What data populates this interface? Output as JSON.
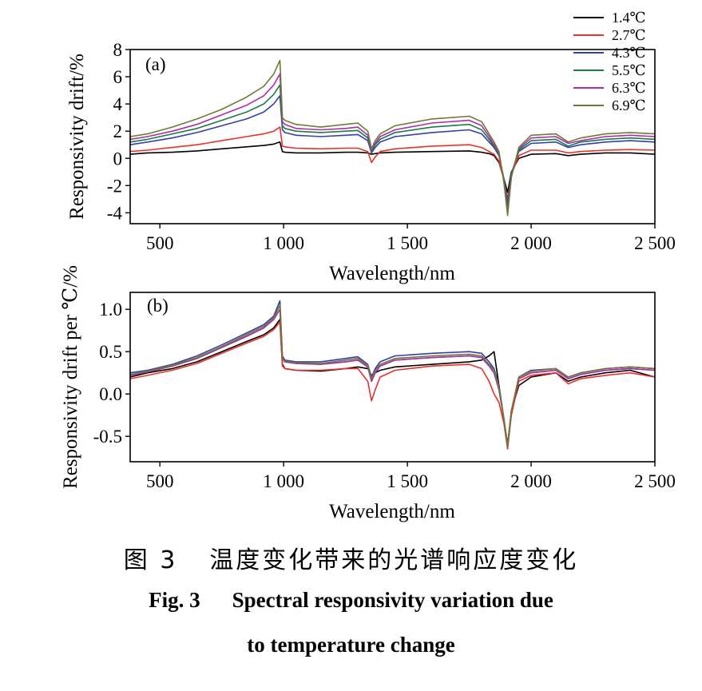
{
  "chart_data": [
    {
      "type": "line",
      "panel_label": "(a)",
      "xlabel": "Wavelength/nm",
      "ylabel": "Responsivity drift/%",
      "xlim": [
        380,
        2500
      ],
      "ylim": [
        -4.8,
        8
      ],
      "xticks": [
        500,
        1000,
        1500,
        2000,
        2500
      ],
      "xtick_labels": [
        "500",
        "1 000",
        "1 500",
        "2 000",
        "2 500"
      ],
      "yticks": [
        -4,
        -2,
        0,
        2,
        4,
        6,
        8
      ],
      "ytick_labels": [
        "-4",
        "-2",
        "0",
        "2",
        "4",
        "6",
        "8"
      ],
      "x": [
        380,
        450,
        550,
        650,
        750,
        850,
        920,
        960,
        985,
        995,
        1005,
        1050,
        1150,
        1250,
        1300,
        1340,
        1355,
        1370,
        1390,
        1450,
        1600,
        1750,
        1800,
        1830,
        1850,
        1870,
        1890,
        1905,
        1920,
        1950,
        2000,
        2100,
        2150,
        2200,
        2300,
        2400,
        2500
      ],
      "series": [
        {
          "name": "1.4℃",
          "color": "#000000",
          "values": [
            0.3,
            0.4,
            0.45,
            0.55,
            0.7,
            0.85,
            0.95,
            1.05,
            1.2,
            0.5,
            0.45,
            0.4,
            0.4,
            0.45,
            0.45,
            0.4,
            0.3,
            0.35,
            0.4,
            0.45,
            0.5,
            0.55,
            0.45,
            0.35,
            0.2,
            -0.3,
            -1.5,
            -2.5,
            -1.0,
            0.0,
            0.3,
            0.35,
            0.2,
            0.3,
            0.4,
            0.4,
            0.3
          ]
        },
        {
          "name": "2.7℃",
          "color": "#e8302b",
          "values": [
            0.5,
            0.6,
            0.8,
            1.0,
            1.3,
            1.6,
            1.8,
            2.0,
            2.3,
            0.9,
            0.85,
            0.75,
            0.7,
            0.75,
            0.75,
            0.5,
            -0.3,
            0.1,
            0.5,
            0.7,
            0.9,
            1.0,
            0.8,
            0.5,
            0.3,
            -0.2,
            -1.6,
            -3.0,
            -1.2,
            0.2,
            0.6,
            0.6,
            0.4,
            0.5,
            0.6,
            0.65,
            0.6
          ]
        },
        {
          "name": "4.3℃",
          "color": "#3040a8",
          "values": [
            1.0,
            1.2,
            1.5,
            1.9,
            2.4,
            2.9,
            3.4,
            4.0,
            4.6,
            2.1,
            1.9,
            1.7,
            1.6,
            1.7,
            1.75,
            1.3,
            0.4,
            0.8,
            1.2,
            1.6,
            1.9,
            2.1,
            1.8,
            1.2,
            0.8,
            0.2,
            -1.5,
            -3.3,
            -1.1,
            0.5,
            1.1,
            1.2,
            0.8,
            1.0,
            1.2,
            1.3,
            1.2
          ]
        },
        {
          "name": "5.5℃",
          "color": "#1a7a48",
          "values": [
            1.2,
            1.4,
            1.8,
            2.2,
            2.8,
            3.4,
            4.0,
            4.7,
            5.4,
            2.4,
            2.2,
            2.0,
            1.9,
            2.0,
            2.05,
            1.5,
            0.5,
            1.0,
            1.4,
            1.9,
            2.3,
            2.5,
            2.1,
            1.4,
            0.9,
            0.3,
            -1.6,
            -3.6,
            -1.2,
            0.6,
            1.3,
            1.4,
            0.9,
            1.2,
            1.4,
            1.5,
            1.4
          ]
        },
        {
          "name": "6.3℃",
          "color": "#b02ab0",
          "values": [
            1.4,
            1.6,
            2.0,
            2.5,
            3.2,
            3.9,
            4.6,
            5.4,
            6.2,
            2.7,
            2.5,
            2.2,
            2.1,
            2.2,
            2.3,
            1.7,
            0.6,
            1.1,
            1.6,
            2.1,
            2.6,
            2.8,
            2.4,
            1.6,
            1.0,
            0.4,
            -1.7,
            -3.9,
            -1.3,
            0.7,
            1.5,
            1.6,
            1.1,
            1.3,
            1.6,
            1.7,
            1.6
          ]
        },
        {
          "name": "6.9℃",
          "color": "#6e7a30",
          "values": [
            1.6,
            1.8,
            2.3,
            2.9,
            3.6,
            4.5,
            5.3,
            6.2,
            7.2,
            3.0,
            2.8,
            2.5,
            2.3,
            2.5,
            2.6,
            2.0,
            0.7,
            1.3,
            1.8,
            2.4,
            2.9,
            3.1,
            2.7,
            1.8,
            1.2,
            0.5,
            -1.8,
            -4.2,
            -1.4,
            0.8,
            1.7,
            1.8,
            1.2,
            1.5,
            1.8,
            1.9,
            1.8
          ]
        }
      ]
    },
    {
      "type": "line",
      "panel_label": "(b)",
      "xlabel": "Wavelength/nm",
      "ylabel": "Responsivity drift per ℃/%",
      "xlim": [
        380,
        2500
      ],
      "ylim": [
        -0.8,
        1.2
      ],
      "xticks": [
        500,
        1000,
        1500,
        2000,
        2500
      ],
      "xtick_labels": [
        "500",
        "1 000",
        "1 500",
        "2 000",
        "2 500"
      ],
      "yticks": [
        -0.5,
        0.0,
        0.5,
        1.0
      ],
      "ytick_labels": [
        "-0.5",
        "0.0",
        "0.5",
        "1.0"
      ],
      "x": [
        380,
        450,
        550,
        650,
        750,
        850,
        920,
        960,
        985,
        995,
        1005,
        1050,
        1150,
        1250,
        1300,
        1340,
        1355,
        1370,
        1390,
        1450,
        1600,
        1750,
        1800,
        1830,
        1850,
        1870,
        1890,
        1905,
        1920,
        1950,
        2000,
        2100,
        2150,
        2200,
        2300,
        2400,
        2500
      ],
      "series": [
        {
          "name": "1.4℃",
          "color": "#000000",
          "values": [
            0.2,
            0.25,
            0.3,
            0.38,
            0.5,
            0.62,
            0.7,
            0.78,
            0.88,
            0.35,
            0.3,
            0.28,
            0.27,
            0.3,
            0.32,
            0.3,
            0.22,
            0.25,
            0.28,
            0.32,
            0.35,
            0.38,
            0.4,
            0.45,
            0.5,
            0.1,
            -0.3,
            -0.6,
            -0.2,
            0.1,
            0.2,
            0.25,
            0.15,
            0.2,
            0.25,
            0.28,
            0.2
          ]
        },
        {
          "name": "2.7℃",
          "color": "#e8302b",
          "values": [
            0.18,
            0.22,
            0.28,
            0.36,
            0.48,
            0.6,
            0.68,
            0.76,
            0.85,
            0.33,
            0.3,
            0.28,
            0.28,
            0.3,
            0.3,
            0.15,
            -0.08,
            0.05,
            0.2,
            0.28,
            0.33,
            0.35,
            0.3,
            0.15,
            0.0,
            -0.1,
            -0.35,
            -0.65,
            -0.25,
            0.15,
            0.22,
            0.25,
            0.12,
            0.18,
            0.22,
            0.25,
            0.2
          ]
        },
        {
          "name": "4.3℃",
          "color": "#3040a8",
          "values": [
            0.25,
            0.28,
            0.35,
            0.45,
            0.58,
            0.72,
            0.82,
            0.92,
            1.1,
            0.45,
            0.4,
            0.38,
            0.38,
            0.42,
            0.44,
            0.35,
            0.2,
            0.3,
            0.38,
            0.45,
            0.48,
            0.5,
            0.48,
            0.38,
            0.3,
            0.1,
            -0.3,
            -0.62,
            -0.2,
            0.2,
            0.28,
            0.3,
            0.2,
            0.25,
            0.3,
            0.32,
            0.3
          ]
        },
        {
          "name": "5.5℃",
          "color": "#1a7a48",
          "values": [
            0.22,
            0.26,
            0.33,
            0.42,
            0.55,
            0.68,
            0.78,
            0.88,
            1.0,
            0.42,
            0.38,
            0.36,
            0.35,
            0.38,
            0.4,
            0.32,
            0.15,
            0.25,
            0.33,
            0.4,
            0.43,
            0.45,
            0.43,
            0.33,
            0.25,
            0.05,
            -0.3,
            -0.62,
            -0.2,
            0.18,
            0.25,
            0.28,
            0.18,
            0.23,
            0.28,
            0.3,
            0.28
          ]
        },
        {
          "name": "6.3℃",
          "color": "#b02ab0",
          "values": [
            0.22,
            0.26,
            0.33,
            0.42,
            0.55,
            0.68,
            0.78,
            0.88,
            1.0,
            0.42,
            0.38,
            0.36,
            0.35,
            0.38,
            0.4,
            0.32,
            0.15,
            0.25,
            0.33,
            0.4,
            0.43,
            0.45,
            0.43,
            0.33,
            0.25,
            0.05,
            -0.3,
            -0.62,
            -0.2,
            0.18,
            0.25,
            0.28,
            0.18,
            0.23,
            0.28,
            0.3,
            0.28
          ]
        },
        {
          "name": "6.9℃",
          "color": "#6e7a30",
          "values": [
            0.23,
            0.27,
            0.34,
            0.43,
            0.56,
            0.7,
            0.8,
            0.9,
            1.05,
            0.43,
            0.39,
            0.37,
            0.36,
            0.4,
            0.42,
            0.34,
            0.18,
            0.28,
            0.35,
            0.42,
            0.45,
            0.47,
            0.45,
            0.35,
            0.28,
            0.08,
            -0.3,
            -0.62,
            -0.2,
            0.2,
            0.27,
            0.3,
            0.2,
            0.25,
            0.3,
            0.32,
            0.3
          ]
        }
      ]
    }
  ],
  "caption": {
    "cn_label": "图 3",
    "cn_text": "温度变化带来的光谱响应度变化",
    "en_label": "Fig. 3",
    "en_text_line1": "Spectral responsivity variation due",
    "en_text_line2": "to temperature change"
  }
}
